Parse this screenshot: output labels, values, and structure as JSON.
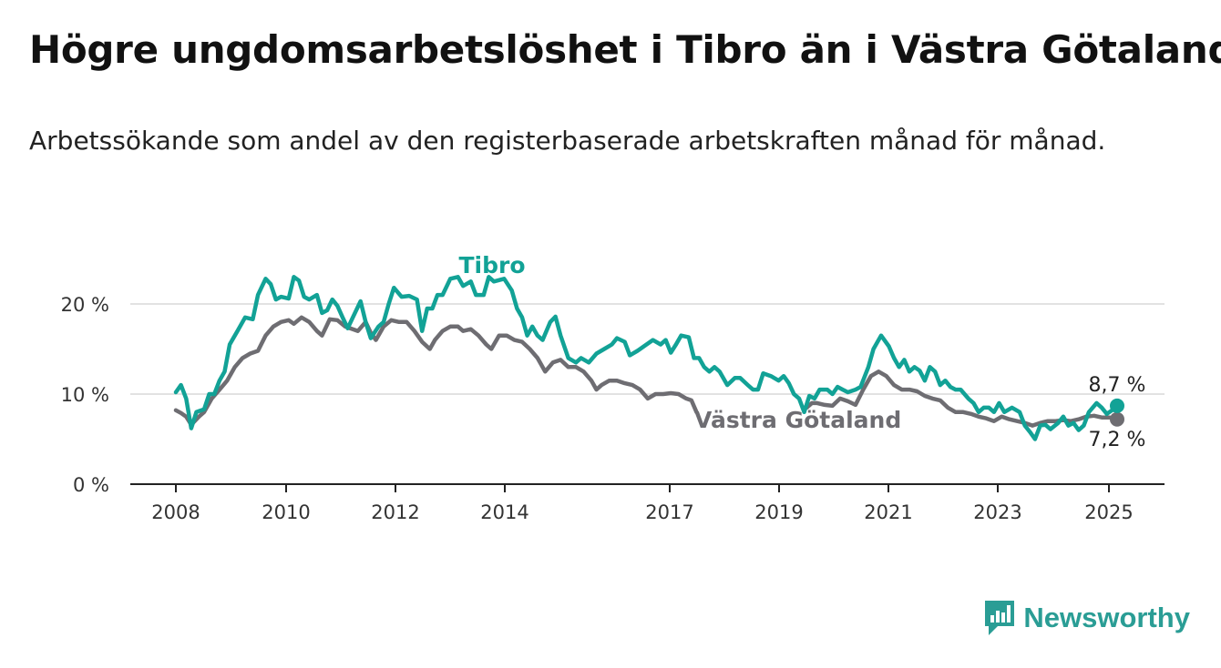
{
  "chart_data": {
    "type": "line",
    "title": "Högre ungdomsarbetslöshet i Tibro än i Västra Götaland",
    "subtitle": "Arbetssökande som andel av den registerbaserade arbetskraften månad för månad.",
    "xlabel": "",
    "ylabel": "",
    "xlim": [
      2008,
      2026.0
    ],
    "ylim": [
      0,
      20
    ],
    "x_ticks": [
      "2008",
      "2010",
      "2012",
      "2014",
      "2017",
      "2019",
      "2021",
      "2023",
      "2025"
    ],
    "y_ticks": [
      "0 %",
      "10 %",
      "20 %"
    ],
    "grid": true,
    "series": [
      {
        "name": "Tibro",
        "color": "#12a296",
        "end_label": "8,7 %",
        "points": [
          [
            2008.0,
            10.2
          ],
          [
            2008.1,
            11.0
          ],
          [
            2008.2,
            9.5
          ],
          [
            2008.3,
            6.2
          ],
          [
            2008.4,
            8.0
          ],
          [
            2008.55,
            8.3
          ],
          [
            2008.65,
            10.0
          ],
          [
            2008.75,
            10.0
          ],
          [
            2008.85,
            11.5
          ],
          [
            2008.95,
            12.5
          ],
          [
            2009.05,
            15.5
          ],
          [
            2009.2,
            17.0
          ],
          [
            2009.35,
            18.5
          ],
          [
            2009.5,
            18.3
          ],
          [
            2009.6,
            21.0
          ],
          [
            2009.75,
            22.8
          ],
          [
            2009.85,
            22.2
          ],
          [
            2009.95,
            20.5
          ],
          [
            2010.05,
            20.8
          ],
          [
            2010.2,
            20.6
          ],
          [
            2010.3,
            23.0
          ],
          [
            2010.4,
            22.6
          ],
          [
            2010.5,
            20.8
          ],
          [
            2010.6,
            20.5
          ],
          [
            2010.75,
            21.0
          ],
          [
            2010.85,
            19.0
          ],
          [
            2010.95,
            19.3
          ],
          [
            2011.05,
            20.5
          ],
          [
            2011.15,
            19.8
          ],
          [
            2011.25,
            18.5
          ],
          [
            2011.35,
            17.3
          ],
          [
            2011.45,
            18.5
          ],
          [
            2011.6,
            20.3
          ],
          [
            2011.7,
            18.0
          ],
          [
            2011.8,
            16.2
          ],
          [
            2011.95,
            17.5
          ],
          [
            2012.05,
            18.0
          ],
          [
            2012.15,
            20.0
          ],
          [
            2012.25,
            21.8
          ],
          [
            2012.4,
            20.8
          ],
          [
            2012.55,
            20.9
          ],
          [
            2012.7,
            20.5
          ],
          [
            2012.8,
            17.0
          ],
          [
            2012.9,
            19.5
          ],
          [
            2013.0,
            19.5
          ],
          [
            2013.1,
            21.0
          ],
          [
            2013.2,
            21.0
          ],
          [
            2013.35,
            22.8
          ],
          [
            2013.5,
            23.0
          ],
          [
            2013.6,
            22.0
          ],
          [
            2013.75,
            22.5
          ],
          [
            2013.85,
            21.0
          ],
          [
            2014.0,
            21.0
          ],
          [
            2014.1,
            23.0
          ],
          [
            2014.2,
            22.5
          ],
          [
            2014.4,
            22.8
          ],
          [
            2014.55,
            21.5
          ],
          [
            2014.65,
            19.5
          ],
          [
            2014.75,
            18.5
          ],
          [
            2014.85,
            16.5
          ],
          [
            2014.95,
            17.5
          ],
          [
            2015.05,
            16.5
          ],
          [
            2015.15,
            16.0
          ],
          [
            2015.3,
            18.0
          ],
          [
            2015.4,
            18.6
          ],
          [
            2015.5,
            16.5
          ],
          [
            2015.65,
            14.0
          ],
          [
            2015.8,
            13.5
          ],
          [
            2015.9,
            14.0
          ],
          [
            2016.05,
            13.5
          ],
          [
            2016.2,
            14.5
          ],
          [
            2016.35,
            15.0
          ],
          [
            2016.5,
            15.5
          ],
          [
            2016.6,
            16.2
          ],
          [
            2016.75,
            15.8
          ],
          [
            2016.85,
            14.3
          ],
          [
            2017.0,
            14.8
          ],
          [
            2017.1,
            15.2
          ],
          [
            2017.3,
            16.0
          ],
          [
            2017.45,
            15.5
          ],
          [
            2017.55,
            16.0
          ],
          [
            2017.65,
            14.6
          ],
          [
            2017.75,
            15.5
          ],
          [
            2017.85,
            16.5
          ],
          [
            2018.0,
            16.3
          ],
          [
            2018.1,
            14.0
          ],
          [
            2018.2,
            14.0
          ],
          [
            2018.3,
            13.0
          ],
          [
            2018.4,
            12.5
          ],
          [
            2018.5,
            13.0
          ],
          [
            2018.6,
            12.5
          ],
          [
            2018.75,
            11.0
          ],
          [
            2018.9,
            11.8
          ],
          [
            2019.0,
            11.8
          ],
          [
            2019.15,
            11.0
          ],
          [
            2019.25,
            10.5
          ],
          [
            2019.35,
            10.5
          ],
          [
            2019.45,
            12.3
          ],
          [
            2019.6,
            12.0
          ],
          [
            2019.75,
            11.5
          ],
          [
            2019.85,
            12.0
          ],
          [
            2019.95,
            11.2
          ],
          [
            2020.05,
            10.0
          ],
          [
            2020.15,
            9.5
          ],
          [
            2020.25,
            8.0
          ],
          [
            2020.35,
            9.8
          ],
          [
            2020.45,
            9.5
          ],
          [
            2020.55,
            10.5
          ],
          [
            2020.7,
            10.5
          ],
          [
            2020.8,
            10.0
          ],
          [
            2020.9,
            10.8
          ],
          [
            2021.0,
            10.5
          ],
          [
            2021.1,
            10.2
          ],
          [
            2021.25,
            10.5
          ],
          [
            2021.35,
            10.8
          ],
          [
            2021.5,
            13.0
          ],
          [
            2021.6,
            15.0
          ],
          [
            2021.75,
            16.5
          ],
          [
            2021.9,
            15.3
          ],
          [
            2022.0,
            14.0
          ],
          [
            2022.1,
            13.0
          ],
          [
            2022.2,
            13.8
          ],
          [
            2022.3,
            12.5
          ],
          [
            2022.4,
            13.0
          ],
          [
            2022.5,
            12.6
          ],
          [
            2022.6,
            11.5
          ],
          [
            2022.7,
            13.0
          ],
          [
            2022.8,
            12.5
          ],
          [
            2022.9,
            11.0
          ],
          [
            2023.0,
            11.5
          ],
          [
            2023.1,
            10.8
          ],
          [
            2023.2,
            10.5
          ],
          [
            2023.3,
            10.5
          ],
          [
            2023.45,
            9.5
          ],
          [
            2023.55,
            9.0
          ],
          [
            2023.65,
            8.0
          ],
          [
            2023.75,
            8.5
          ],
          [
            2023.85,
            8.5
          ],
          [
            2023.95,
            8.0
          ],
          [
            2024.05,
            9.0
          ],
          [
            2024.15,
            8.0
          ],
          [
            2024.3,
            8.5
          ],
          [
            2024.45,
            8.0
          ],
          [
            2024.55,
            6.5
          ],
          [
            2024.65,
            5.8
          ],
          [
            2024.75,
            5.0
          ],
          [
            2024.85,
            6.5
          ],
          [
            2024.95,
            6.6
          ],
          [
            2025.05,
            6.1
          ],
          [
            2025.2,
            6.8
          ],
          [
            2025.3,
            7.5
          ],
          [
            2025.4,
            6.5
          ],
          [
            2025.5,
            6.8
          ],
          [
            2025.6,
            6.0
          ],
          [
            2025.7,
            6.5
          ],
          [
            2025.8,
            8.0
          ],
          [
            2025.95,
            9.0
          ],
          [
            2026.05,
            8.5
          ],
          [
            2026.15,
            7.8
          ],
          [
            2026.25,
            8.2
          ],
          [
            2026.35,
            8.7
          ]
        ]
      },
      {
        "name": "Västra Götaland",
        "color": "#6e6d72",
        "end_label": "7,2 %",
        "points": [
          [
            2008.0,
            8.2
          ],
          [
            2008.1,
            7.9
          ],
          [
            2008.2,
            7.5
          ],
          [
            2008.3,
            6.6
          ],
          [
            2008.45,
            7.5
          ],
          [
            2008.55,
            8.0
          ],
          [
            2008.7,
            9.5
          ],
          [
            2008.85,
            10.5
          ],
          [
            2009.0,
            11.5
          ],
          [
            2009.15,
            13.0
          ],
          [
            2009.3,
            14.0
          ],
          [
            2009.45,
            14.5
          ],
          [
            2009.6,
            14.8
          ],
          [
            2009.75,
            16.5
          ],
          [
            2009.9,
            17.5
          ],
          [
            2010.05,
            18.0
          ],
          [
            2010.2,
            18.2
          ],
          [
            2010.3,
            17.8
          ],
          [
            2010.45,
            18.5
          ],
          [
            2010.6,
            18.0
          ],
          [
            2010.75,
            17.0
          ],
          [
            2010.85,
            16.5
          ],
          [
            2011.0,
            18.3
          ],
          [
            2011.15,
            18.2
          ],
          [
            2011.3,
            17.5
          ],
          [
            2011.45,
            17.2
          ],
          [
            2011.55,
            17.0
          ],
          [
            2011.7,
            18.0
          ],
          [
            2011.8,
            16.8
          ],
          [
            2011.9,
            16.0
          ],
          [
            2012.05,
            17.5
          ],
          [
            2012.2,
            18.2
          ],
          [
            2012.35,
            18.0
          ],
          [
            2012.5,
            18.0
          ],
          [
            2012.65,
            17.0
          ],
          [
            2012.8,
            15.8
          ],
          [
            2012.95,
            15.0
          ],
          [
            2013.05,
            16.0
          ],
          [
            2013.2,
            17.0
          ],
          [
            2013.35,
            17.5
          ],
          [
            2013.5,
            17.5
          ],
          [
            2013.6,
            17.0
          ],
          [
            2013.75,
            17.2
          ],
          [
            2013.9,
            16.5
          ],
          [
            2014.05,
            15.5
          ],
          [
            2014.15,
            15.0
          ],
          [
            2014.3,
            16.5
          ],
          [
            2014.45,
            16.5
          ],
          [
            2014.6,
            16.0
          ],
          [
            2014.75,
            15.8
          ],
          [
            2014.9,
            15.0
          ],
          [
            2015.05,
            14.0
          ],
          [
            2015.2,
            12.5
          ],
          [
            2015.35,
            13.5
          ],
          [
            2015.5,
            13.8
          ],
          [
            2015.65,
            13.0
          ],
          [
            2015.8,
            13.0
          ],
          [
            2015.95,
            12.5
          ],
          [
            2016.1,
            11.5
          ],
          [
            2016.2,
            10.5
          ],
          [
            2016.3,
            11.0
          ],
          [
            2016.45,
            11.5
          ],
          [
            2016.6,
            11.5
          ],
          [
            2016.75,
            11.2
          ],
          [
            2016.9,
            11.0
          ],
          [
            2017.05,
            10.5
          ],
          [
            2017.2,
            9.5
          ],
          [
            2017.35,
            10.0
          ],
          [
            2017.5,
            10.0
          ],
          [
            2017.65,
            10.1
          ],
          [
            2017.8,
            10.0
          ],
          [
            2017.95,
            9.5
          ],
          [
            2018.05,
            9.3
          ],
          [
            2018.15,
            8.0
          ]
        ]
      },
      {
        "name": "",
        "color": "#6e6d72",
        "points": [
          [
            2020.3,
            8.5
          ],
          [
            2020.4,
            9.0
          ],
          [
            2020.5,
            9.0
          ],
          [
            2020.65,
            8.8
          ],
          [
            2020.8,
            8.7
          ],
          [
            2020.95,
            9.5
          ],
          [
            2021.1,
            9.2
          ],
          [
            2021.25,
            8.8
          ],
          [
            2021.4,
            10.5
          ],
          [
            2021.55,
            12.0
          ],
          [
            2021.7,
            12.5
          ],
          [
            2021.85,
            12.0
          ],
          [
            2022.0,
            11.0
          ],
          [
            2022.15,
            10.5
          ],
          [
            2022.3,
            10.5
          ],
          [
            2022.45,
            10.3
          ],
          [
            2022.6,
            9.8
          ],
          [
            2022.75,
            9.5
          ],
          [
            2022.9,
            9.3
          ],
          [
            2023.05,
            8.5
          ],
          [
            2023.2,
            8.0
          ],
          [
            2023.35,
            8.0
          ],
          [
            2023.5,
            7.8
          ],
          [
            2023.65,
            7.5
          ],
          [
            2023.8,
            7.3
          ],
          [
            2023.95,
            7.0
          ],
          [
            2024.1,
            7.5
          ],
          [
            2024.25,
            7.2
          ],
          [
            2024.4,
            7.0
          ],
          [
            2024.55,
            6.8
          ],
          [
            2024.7,
            6.5
          ],
          [
            2024.85,
            6.8
          ],
          [
            2025.0,
            7.0
          ],
          [
            2025.15,
            7.0
          ],
          [
            2025.3,
            7.1
          ],
          [
            2025.45,
            7.0
          ],
          [
            2025.6,
            7.2
          ],
          [
            2025.75,
            7.5
          ],
          [
            2025.9,
            7.6
          ],
          [
            2026.05,
            7.4
          ],
          [
            2026.2,
            7.4
          ],
          [
            2026.35,
            7.2
          ]
        ]
      }
    ]
  },
  "branding": {
    "logo_text": "Newsworthy",
    "logo_color": "#2a9d95"
  }
}
